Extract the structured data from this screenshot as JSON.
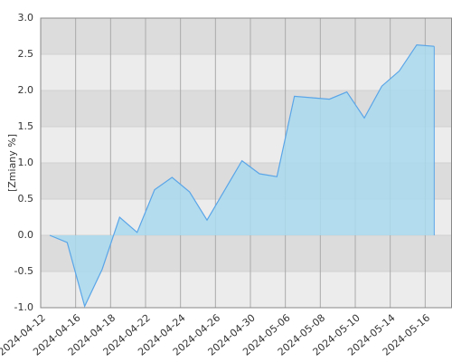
{
  "chart_data": {
    "type": "area",
    "y_label": "[Zmiany %]",
    "categories": [
      "2024-04-12",
      null,
      "2024-04-16",
      null,
      "2024-04-18",
      null,
      "2024-04-22",
      null,
      "2024-04-24",
      null,
      "2024-04-26",
      null,
      "2024-04-30",
      null,
      "2024-05-06",
      null,
      "2024-05-08",
      null,
      "2024-05-10",
      null,
      "2024-05-14",
      null,
      "2024-05-16"
    ],
    "values": [
      0,
      -0.1,
      -0.98,
      -0.47,
      0.25,
      0.04,
      0.63,
      0.8,
      0.6,
      0.21,
      0.62,
      1.03,
      0.85,
      0.81,
      1.92,
      1.9,
      1.88,
      1.98,
      1.62,
      2.06,
      2.27,
      2.63,
      2.61
    ],
    "color": "#5aa5e8",
    "fill_color": "#a9daee",
    "ylim": [
      -1,
      3
    ],
    "yticks": [
      {
        "value": -1,
        "label": "-1.0"
      },
      {
        "value": -0.5,
        "label": "-0.5"
      },
      {
        "value": 0,
        "label": "0.0"
      },
      {
        "value": 0.5,
        "label": "0.5"
      },
      {
        "value": 1,
        "label": "1.0"
      },
      {
        "value": 1.5,
        "label": "1.5"
      },
      {
        "value": 2,
        "label": "2.0"
      },
      {
        "value": 2.5,
        "label": "2.5"
      },
      {
        "value": 3,
        "label": "3.0"
      }
    ],
    "grid": true
  }
}
